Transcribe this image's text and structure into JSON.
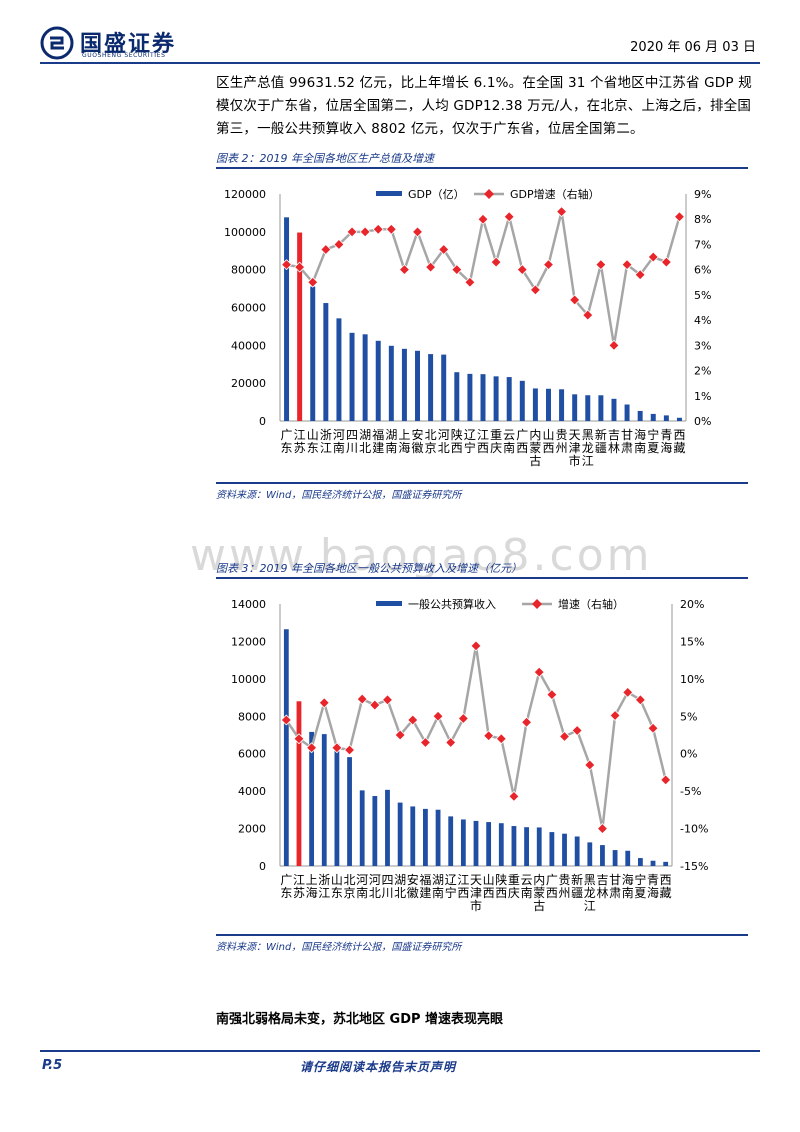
{
  "header": {
    "company": "国盛证券",
    "company_en": "GUOSHENG SECURITIES",
    "date": "2020 年 06 月 03 日"
  },
  "intro": {
    "text": "区生产总值 99631.52 亿元，比上年增长 6.1%。在全国 31 个省地区中江苏省 GDP 规模仅次于广东省，位居全国第二，人均 GDP12.38 万元/人，在北京、上海之后，排全国第三，一般公共预算收入 8802 亿元，仅次于广东省，位居全国第二。"
  },
  "watermark": "www.baogao8.com",
  "figure2": {
    "title": "图表 2：2019 年全国各地区生产总值及增速",
    "source": "资料来源：Wind，国民经济统计公报，国盛证券研究所"
  },
  "figure3": {
    "title": "图表 3：2019 年全国各地区一般公共预算收入及增速（亿元）",
    "source": "资料来源：Wind，国民经济统计公报，国盛证券研究所"
  },
  "section": {
    "heading": "南强北弱格局未变，苏北地区 GDP 增速表现亮眼"
  },
  "footer": {
    "page": "P.5",
    "note": "请仔细阅读本报告末页声明"
  },
  "colors": {
    "bar": "#1f4ea3",
    "highlight": "#e8252b",
    "line": "#a6a6a6",
    "marker": "#e8252b"
  },
  "chart_data": [
    {
      "type": "bar",
      "categories": [
        "广东",
        "江苏",
        "山东",
        "浙江",
        "河南",
        "四川",
        "湖北",
        "福建",
        "湖南",
        "上海",
        "安徽",
        "北京",
        "河北",
        "陕西",
        "辽宁",
        "江西",
        "重庆",
        "云南",
        "广西",
        "内蒙古",
        "山西",
        "贵州",
        "天津市",
        "黑龙江",
        "新疆",
        "吉林",
        "甘肃",
        "海南",
        "宁夏",
        "青海",
        "西藏"
      ],
      "series": [
        {
          "name": "GDP（亿）",
          "axis": "left",
          "chart": "bar",
          "values": [
            107671,
            99632,
            71068,
            62352,
            54259,
            46616,
            45828,
            42395,
            39752,
            38155,
            37114,
            35371,
            35105,
            25793,
            24909,
            24758,
            23606,
            23224,
            21237,
            17213,
            17027,
            16769,
            14104,
            13613,
            13597,
            11727,
            8718,
            5309,
            3748,
            2966,
            1698
          ]
        },
        {
          "name": "GDP增速（右轴）",
          "axis": "right",
          "chart": "line",
          "values": [
            6.2,
            6.1,
            5.5,
            6.8,
            7.0,
            7.5,
            7.5,
            7.6,
            7.6,
            6.0,
            7.5,
            6.1,
            6.8,
            6.0,
            5.5,
            8.0,
            6.3,
            8.1,
            6.0,
            5.2,
            6.2,
            8.3,
            4.8,
            4.2,
            6.2,
            3.0,
            6.2,
            5.8,
            6.5,
            6.3,
            8.1
          ]
        }
      ],
      "highlight_index": 1,
      "ylim": [
        0,
        120000
      ],
      "yticks": [
        "0",
        "20000",
        "40000",
        "60000",
        "80000",
        "100000",
        "120000"
      ],
      "y2lim": [
        0,
        9
      ],
      "y2ticks": [
        "0%",
        "1%",
        "2%",
        "3%",
        "4%",
        "5%",
        "6%",
        "7%",
        "8%",
        "9%"
      ],
      "legend": "top"
    },
    {
      "type": "bar",
      "categories": [
        "广东",
        "江苏",
        "上海",
        "浙江",
        "山东",
        "北京",
        "河南",
        "河北",
        "四川",
        "湖北",
        "安徽",
        "福建",
        "湖南",
        "辽宁",
        "江西",
        "天津市",
        "山西",
        "陕西",
        "重庆",
        "云南",
        "内蒙古",
        "广西",
        "贵州",
        "新疆",
        "黑龙江",
        "吉林",
        "甘肃",
        "海南",
        "宁夏",
        "青海",
        "西藏"
      ],
      "series": [
        {
          "name": "一般公共预算收入",
          "axis": "left",
          "chart": "bar",
          "values": [
            12651,
            8802,
            7165,
            7048,
            6527,
            5817,
            4041,
            3739,
            4070,
            3388,
            3182,
            3052,
            3007,
            2651,
            2487,
            2410,
            2347,
            2287,
            2135,
            2074,
            2060,
            1812,
            1727,
            1577,
            1262,
            1117,
            850,
            814,
            424,
            282,
            222
          ]
        },
        {
          "name": "增速（右轴）",
          "axis": "right",
          "chart": "line",
          "values": [
            4.5,
            2.0,
            0.8,
            6.8,
            0.8,
            0.5,
            7.3,
            6.5,
            7.2,
            2.5,
            4.5,
            1.5,
            5.0,
            1.5,
            4.7,
            14.4,
            2.4,
            2.0,
            -5.7,
            4.2,
            10.9,
            7.9,
            2.3,
            3.1,
            -1.5,
            -10.0,
            5.1,
            8.2,
            7.2,
            3.4,
            -3.5
          ]
        }
      ],
      "highlight_index": 1,
      "ylim": [
        0,
        14000
      ],
      "yticks": [
        "0",
        "2000",
        "4000",
        "6000",
        "8000",
        "10000",
        "12000",
        "14000"
      ],
      "y2lim": [
        -15,
        20
      ],
      "y2ticks": [
        "-15%",
        "-10%",
        "-5%",
        "0%",
        "5%",
        "10%",
        "15%",
        "20%"
      ],
      "legend": "top"
    }
  ]
}
